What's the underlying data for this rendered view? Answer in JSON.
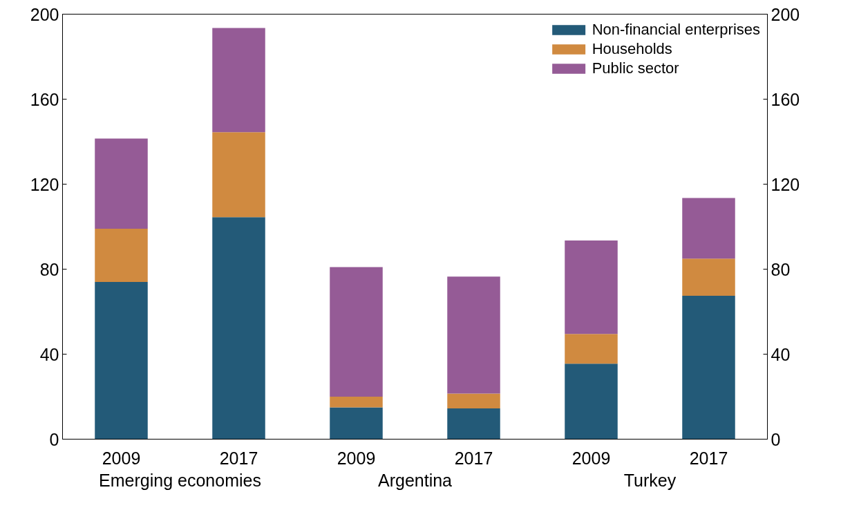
{
  "chart_data": {
    "type": "bar",
    "stacked": true,
    "categories": [
      "2009",
      "2017",
      "2009",
      "2017",
      "2009",
      "2017"
    ],
    "annotations": [
      "Emerging economies",
      "Argentina",
      "Turkey"
    ],
    "series": [
      {
        "name": "Non-financial enterprises",
        "color": "#235a78",
        "values": [
          74,
          104.5,
          15,
          14.5,
          35.5,
          67.5
        ]
      },
      {
        "name": "Households",
        "color": "#d08a40",
        "values": [
          25,
          40,
          5,
          7,
          14,
          17.5
        ]
      },
      {
        "name": "Public sector",
        "color": "#955b96",
        "values": [
          42.5,
          49,
          61,
          55,
          44,
          28.5
        ]
      }
    ],
    "ylim": [
      0,
      200
    ],
    "yticks": [
      0,
      40,
      80,
      120,
      160,
      200
    ],
    "y2lim": [
      0,
      200
    ],
    "y2ticks": [
      0,
      40,
      80,
      120,
      160,
      200
    ],
    "grid": false,
    "legend": "top right"
  }
}
